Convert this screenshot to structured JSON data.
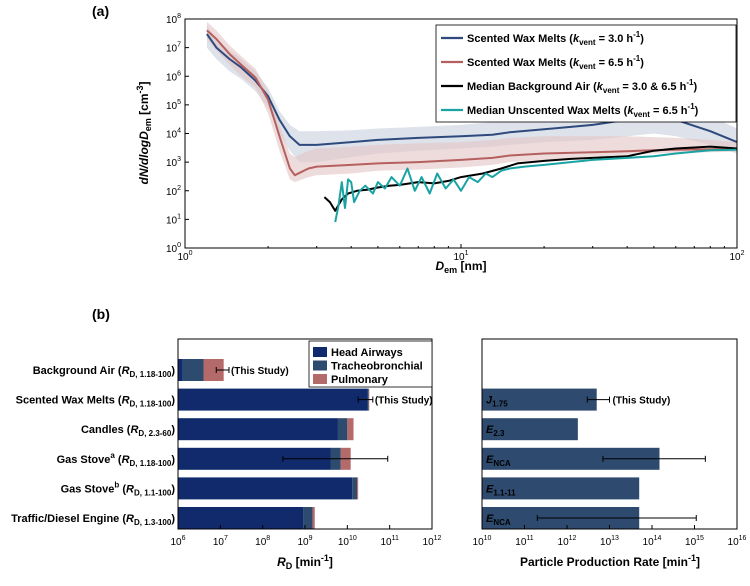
{
  "colors": {
    "scented_3": "#2E4A7D",
    "scented_65": "#B5605F",
    "background": "#000000",
    "unscented": "#1AA3A3",
    "band_3": "#C8CEDC",
    "band_65": "#E3C4C4",
    "head": "#102A6B",
    "tracheo": "#2C4B6E",
    "pulmonary": "#B56A6A",
    "production": "#2E4A6E"
  },
  "chart_data": [
    {
      "type": "line",
      "panel_label": "(a)",
      "xscale": "log",
      "yscale": "log",
      "xlim": [
        1,
        100
      ],
      "ylim": [
        1,
        100000000
      ],
      "xlabel": {
        "main": "D",
        "sub": "em",
        "unit": " [nm]"
      },
      "ylabel": {
        "prefix": "dN/dlog",
        "D": "D",
        "sub": "em",
        "unit": " [cm",
        "sup": "-3",
        "close": "]"
      },
      "x_ticks": [
        {
          "v": 1,
          "b": "10",
          "e": "0"
        },
        {
          "v": 10,
          "b": "10",
          "e": "1"
        },
        {
          "v": 100,
          "b": "10",
          "e": "2"
        }
      ],
      "y_ticks": [
        {
          "v": 1,
          "b": "10",
          "e": "0"
        },
        {
          "v": 10,
          "b": "10",
          "e": "1"
        },
        {
          "v": 100,
          "b": "10",
          "e": "2"
        },
        {
          "v": 1000,
          "b": "10",
          "e": "3"
        },
        {
          "v": 10000,
          "b": "10",
          "e": "4"
        },
        {
          "v": 100000,
          "b": "10",
          "e": "5"
        },
        {
          "v": 1000000,
          "b": "10",
          "e": "6"
        },
        {
          "v": 10000000,
          "b": "10",
          "e": "7"
        },
        {
          "v": 100000000,
          "b": "10",
          "e": "8"
        }
      ],
      "legend_position": "top-right",
      "series": [
        {
          "key": "scented_3",
          "legend": {
            "pre": "Scented Wax Melts (",
            "k": "k",
            "ksub": "vent",
            "mid": " = 3.0 h",
            "sup": "-1",
            "post": ")"
          },
          "x": [
            1.2,
            1.3,
            1.45,
            1.6,
            1.8,
            2.0,
            2.2,
            2.4,
            2.6,
            3,
            4,
            5,
            7,
            10,
            13,
            15,
            20,
            30,
            40,
            50,
            60,
            80,
            100
          ],
          "y": [
            30000000,
            10000000,
            4000000,
            2000000,
            700000,
            200000,
            30000,
            8000,
            4000,
            4000,
            5000,
            6000,
            7000,
            8000,
            9000,
            11000,
            14000,
            20000,
            30000,
            40000,
            30000,
            12000,
            5000
          ],
          "band": [
            [
              10000000,
              60000000
            ],
            [
              4000000,
              20000000
            ],
            [
              1500000,
              8000000
            ],
            [
              800000,
              4000000
            ],
            [
              300000,
              1500000
            ],
            [
              80000,
              400000
            ],
            [
              10000,
              60000
            ],
            [
              2500,
              20000
            ],
            [
              1000,
              12000
            ],
            [
              1000,
              12000
            ],
            [
              1500,
              13000
            ],
            [
              2000,
              15000
            ],
            [
              2500,
              17000
            ],
            [
              3000,
              20000
            ],
            [
              3500,
              25000
            ],
            [
              4000,
              30000
            ],
            [
              5000,
              35000
            ],
            [
              6000,
              50000
            ],
            [
              8000,
              70000
            ],
            [
              10000,
              90000
            ],
            [
              8000,
              80000
            ],
            [
              4000,
              40000
            ],
            [
              2000,
              15000
            ]
          ]
        },
        {
          "key": "scented_65",
          "legend": {
            "pre": "Scented Wax Melts (",
            "k": "k",
            "ksub": "vent",
            "mid": " = 6.5 h",
            "sup": "-1",
            "post": ")"
          },
          "x": [
            1.2,
            1.3,
            1.45,
            1.6,
            1.8,
            2.0,
            2.2,
            2.4,
            2.5,
            2.8,
            3,
            4,
            5,
            7,
            10,
            13,
            15,
            20,
            30,
            40,
            50,
            60,
            80,
            100
          ],
          "y": [
            40000000,
            20000000,
            6000000,
            2500000,
            900000,
            150000,
            8000,
            600,
            350,
            600,
            700,
            800,
            900,
            1000,
            1200,
            1400,
            1700,
            2000,
            2200,
            2400,
            2600,
            2700,
            2800,
            3000
          ],
          "band": [
            [
              20000000,
              80000000
            ],
            [
              8000000,
              40000000
            ],
            [
              2500000,
              12000000
            ],
            [
              1000000,
              5000000
            ],
            [
              400000,
              1800000
            ],
            [
              50000,
              300000
            ],
            [
              2500,
              20000
            ],
            [
              250,
              2000
            ],
            [
              200,
              1500
            ],
            [
              300,
              2500
            ],
            [
              350,
              3000
            ],
            [
              400,
              3500
            ],
            [
              500,
              4000
            ],
            [
              550,
              4500
            ],
            [
              650,
              5000
            ],
            [
              800,
              6000
            ],
            [
              1000,
              7000
            ],
            [
              1200,
              8000
            ],
            [
              1500,
              8000
            ],
            [
              1800,
              8000
            ],
            [
              2000,
              7500
            ],
            [
              2100,
              7000
            ],
            [
              2200,
              6000
            ],
            [
              2300,
              5000
            ]
          ]
        },
        {
          "key": "background",
          "legend": {
            "pre": "Median Background Air (",
            "k": "k",
            "ksub": "vent",
            "mid": " = 3.0 & 6.5 h",
            "sup": "-1",
            "post": ")"
          },
          "x": [
            3.2,
            3.35,
            3.5,
            3.7,
            3.9,
            4.2,
            4.6,
            5.0,
            5.5,
            6.0,
            7.0,
            8.0,
            9.0,
            10.0,
            12.0,
            14.0,
            16.0,
            20.0,
            25.0,
            30.0,
            40.0,
            50.0,
            60.0,
            80.0,
            100.0
          ],
          "y": [
            60,
            40,
            20,
            50,
            80,
            100,
            110,
            130,
            150,
            160,
            200,
            180,
            220,
            300,
            400,
            600,
            900,
            1100,
            1300,
            1400,
            1600,
            2500,
            3000,
            3500,
            3000
          ]
        },
        {
          "key": "unscented",
          "legend": {
            "pre": "Median Unscented Wax Melts (",
            "k": "k",
            "ksub": "vent",
            "mid": " = 6.5 h",
            "sup": "-1",
            "post": ")"
          },
          "x": [
            3.5,
            3.6,
            3.7,
            3.8,
            3.9,
            4.0,
            4.1,
            4.3,
            4.5,
            4.8,
            5.0,
            5.3,
            5.6,
            6.0,
            6.4,
            6.8,
            7.2,
            7.7,
            8.2,
            8.8,
            9.4,
            10.0,
            10.7,
            11.5,
            12.3,
            13.0,
            14.0,
            15.0,
            17.0,
            20.0,
            25.0,
            30.0,
            40.0,
            50.0,
            60.0,
            80.0,
            100.0
          ],
          "y": [
            8,
            30,
            200,
            25,
            250,
            200,
            40,
            100,
            150,
            80,
            200,
            120,
            300,
            150,
            600,
            100,
            300,
            80,
            400,
            120,
            250,
            100,
            300,
            200,
            400,
            300,
            500,
            600,
            700,
            800,
            1000,
            1200,
            1400,
            1600,
            2000,
            2600,
            2700
          ]
        }
      ]
    },
    {
      "type": "bar",
      "orientation": "horizontal",
      "stacked": true,
      "panel_label": "(b)",
      "xscale": "log",
      "xlim": [
        1000000,
        1000000000000
      ],
      "xlabel": {
        "main": "R",
        "sub": "D",
        "unit": " [min",
        "sup": "-1",
        "close": "]"
      },
      "x_ticks": [
        {
          "v": 1000000,
          "b": "10",
          "e": "6"
        },
        {
          "v": 10000000,
          "b": "10",
          "e": "7"
        },
        {
          "v": 100000000,
          "b": "10",
          "e": "8"
        },
        {
          "v": 1000000000,
          "b": "10",
          "e": "9"
        },
        {
          "v": 10000000000,
          "b": "10",
          "e": "10"
        },
        {
          "v": 100000000000,
          "b": "10",
          "e": "11"
        },
        {
          "v": 1000000000000,
          "b": "10",
          "e": "12"
        }
      ],
      "legend_position": "top-right",
      "legend": [
        "Head Airways",
        "Tracheobronchial",
        "Pulmonary"
      ],
      "rows": [
        {
          "main": "Background Air (",
          "R": "R",
          "sub": "D, 1.18-100",
          "post": ")",
          "sup": "",
          "head": 1300000,
          "tracheo": 4000000,
          "pulmonary": 12000000,
          "err": [
            8000000,
            16000000
          ],
          "note": "(This Study)"
        },
        {
          "main": "Scented Wax Melts (",
          "R": "R",
          "sub": "D, 1.18-100",
          "post": ")",
          "sup": "",
          "head": 30000000000,
          "tracheo": 32000000000,
          "pulmonary": 33000000000,
          "err": [
            18000000000,
            40000000000
          ],
          "note": "(This Study)"
        },
        {
          "main": "Candles (",
          "R": "R",
          "sub": "D, 2.3-60",
          "post": ")",
          "sup": "",
          "head": 6000000000,
          "tracheo": 10000000000,
          "pulmonary": 14000000000,
          "err": null,
          "note": ""
        },
        {
          "main": "Gas Stove",
          "R": "R",
          "sub": "D, 1.18-100",
          "post": ")",
          "sup": "a",
          "head": 4000000000,
          "tracheo": 7000000000,
          "pulmonary": 12000000000,
          "err": [
            300000000,
            90000000000
          ],
          "note": ""
        },
        {
          "main": "Gas Stove",
          "R": "R",
          "sub": "D, 1.1-100",
          "post": ")",
          "sup": "b",
          "head": 13000000000,
          "tracheo": 17000000000,
          "pulmonary": 18000000000,
          "err": null,
          "note": ""
        },
        {
          "main": "Traffic/Diesel Engine (",
          "R": "R",
          "sub": "D, 1.3-100",
          "post": ")",
          "sup": "",
          "head": 900000000,
          "tracheo": 1500000000,
          "pulmonary": 1700000000,
          "err": null,
          "note": ""
        }
      ]
    },
    {
      "type": "bar",
      "orientation": "horizontal",
      "xscale": "log",
      "xlim": [
        10000000000,
        10000000000000000
      ],
      "xlabel": {
        "main": "Particle Production Rate [min",
        "sup": "-1",
        "close": "]"
      },
      "x_ticks": [
        {
          "v": 10000000000,
          "b": "10",
          "e": "10"
        },
        {
          "v": 100000000000,
          "b": "10",
          "e": "11"
        },
        {
          "v": 1000000000000,
          "b": "10",
          "e": "12"
        },
        {
          "v": 10000000000000,
          "b": "10",
          "e": "13"
        },
        {
          "v": 100000000000000,
          "b": "10",
          "e": "14"
        },
        {
          "v": 1000000000000000,
          "b": "10",
          "e": "15"
        },
        {
          "v": 10000000000000000,
          "b": "10",
          "e": "16"
        }
      ],
      "rows": [
        {
          "label": "",
          "sub": "",
          "value": null,
          "err": null,
          "note": ""
        },
        {
          "label": "J",
          "sub": "1.75",
          "value": 5000000000000,
          "err": [
            3000000000000,
            10000000000000
          ],
          "note": "(This Study)"
        },
        {
          "label": "E",
          "sub": "2.3",
          "value": 1800000000000,
          "err": null,
          "note": ""
        },
        {
          "label": "E",
          "sub": "NCA",
          "value": 150000000000000,
          "err": [
            7000000000000,
            1800000000000000
          ],
          "note": ""
        },
        {
          "label": "E",
          "sub": "1.1-11",
          "value": 50000000000000,
          "err": null,
          "note": ""
        },
        {
          "label": "E",
          "sub": "NCA",
          "value": 50000000000000,
          "err": [
            200000000000,
            1100000000000000
          ],
          "note": ""
        }
      ]
    }
  ]
}
